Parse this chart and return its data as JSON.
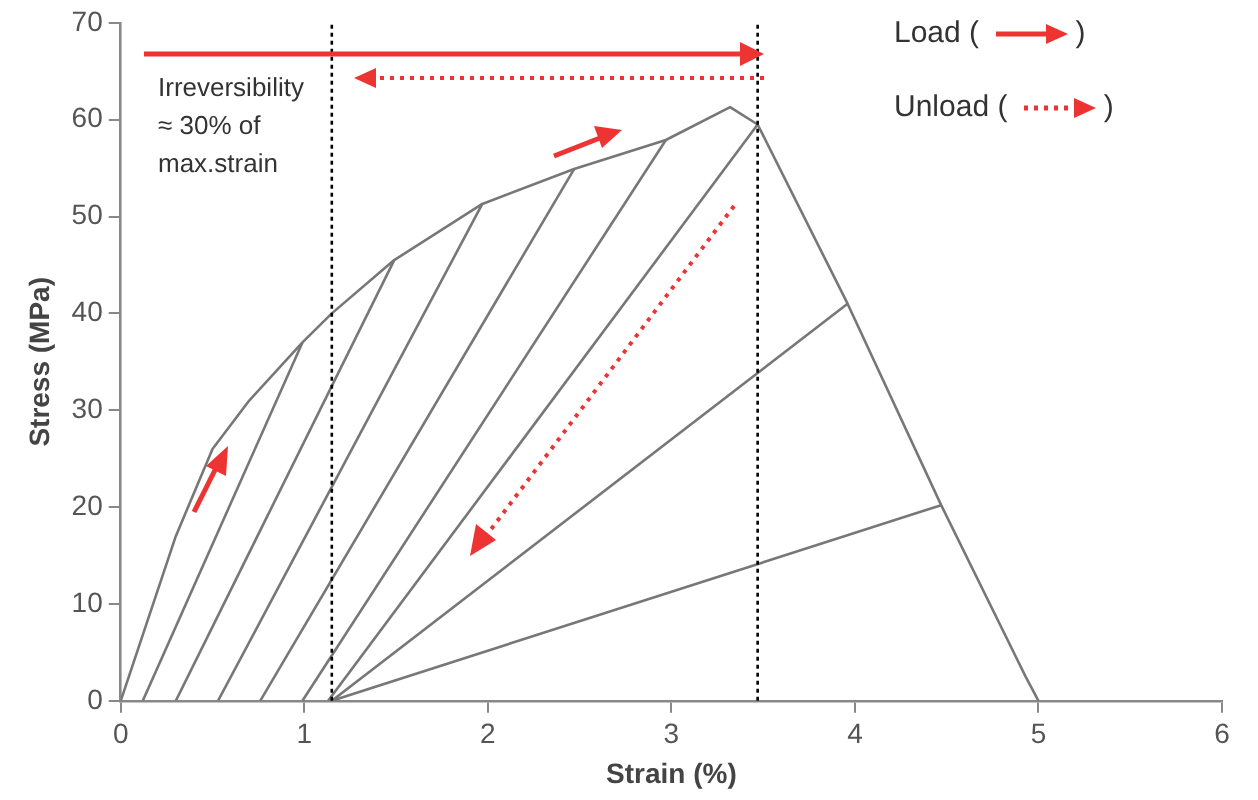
{
  "chart_data": {
    "type": "line",
    "xlabel": "Strain (%)",
    "ylabel": "Stress (MPa)",
    "xlim": [
      0,
      6
    ],
    "xticks": [
      0,
      1,
      2,
      3,
      4,
      5,
      6
    ],
    "ylim": [
      0,
      70
    ],
    "yticks": [
      0,
      10,
      20,
      30,
      40,
      50,
      60,
      70
    ],
    "grid": false,
    "legend": false,
    "marker": "none",
    "line_style": "solid",
    "annotations": [
      "Irreversibility\n≈ 30% of\nmax.strain",
      "Load ( )",
      "Unload ( )"
    ],
    "ref_lines": [
      {
        "axis": "x",
        "value": 1.15,
        "color": "#000000",
        "line_style": "dotted"
      },
      {
        "axis": "x",
        "value": 3.47,
        "color": "#000000",
        "line_style": "dotted"
      }
    ],
    "series": [
      {
        "color": "#777777",
        "x": [
          0,
          0.3,
          0.5,
          0.7,
          0.99,
          1.15,
          1.49,
          1.97,
          2.47,
          2.97,
          3.32,
          3.47,
          3.96,
          4.47,
          4.93,
          5
        ],
        "values": [
          0,
          17,
          26,
          31,
          37,
          40,
          45.5,
          51.3,
          54.9,
          57.9,
          61.3,
          59.5,
          41,
          20.2,
          2.5,
          0
        ]
      },
      {
        "color": "#777777",
        "x": [
          0.12,
          0.99
        ],
        "values": [
          0,
          37
        ]
      },
      {
        "color": "#777777",
        "x": [
          0.3,
          1.49
        ],
        "values": [
          0,
          45.5
        ]
      },
      {
        "color": "#777777",
        "x": [
          0.53,
          1.97
        ],
        "values": [
          0,
          51.3
        ]
      },
      {
        "color": "#777777",
        "x": [
          0.76,
          2.47
        ],
        "values": [
          0,
          54.9
        ]
      },
      {
        "color": "#777777",
        "x": [
          0.99,
          2.97
        ],
        "values": [
          0,
          57.9
        ]
      },
      {
        "color": "#777777",
        "x": [
          1.13,
          3.47
        ],
        "values": [
          0,
          59.5
        ]
      },
      {
        "color": "#777777",
        "x": [
          1.15,
          3.96
        ],
        "values": [
          0,
          41
        ]
      },
      {
        "color": "#777777",
        "x": [
          1.15,
          4.47
        ],
        "values": [
          0,
          20.2
        ]
      }
    ]
  }
}
